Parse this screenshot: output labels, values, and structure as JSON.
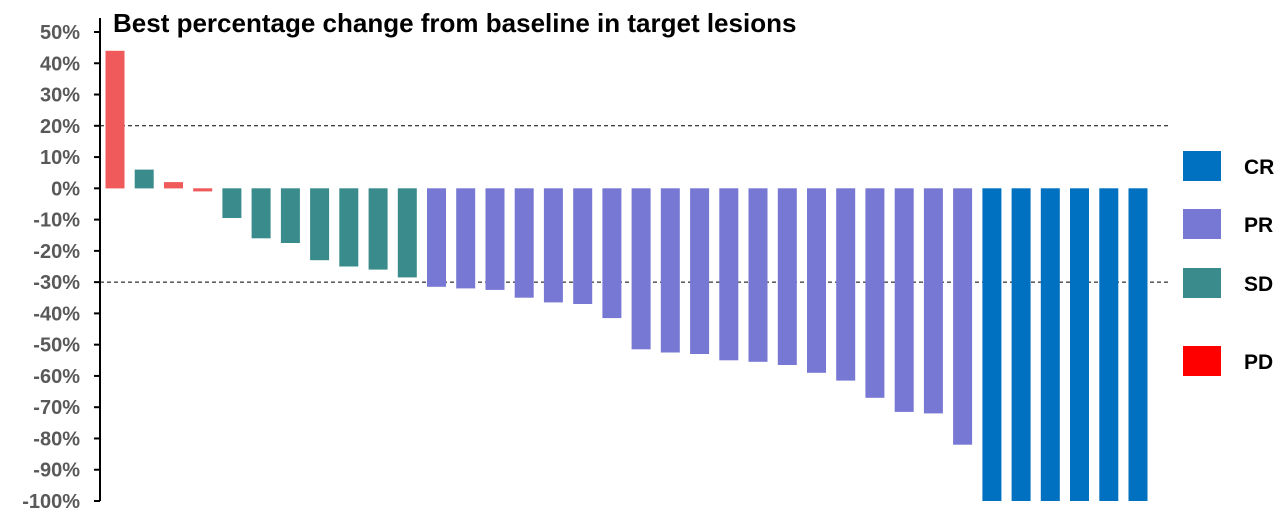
{
  "chart_data": {
    "type": "bar",
    "title": "Best percentage change from baseline in target lesions",
    "xlabel": "",
    "ylabel": "",
    "ylim": [
      -100,
      50
    ],
    "y_ticks": [
      50,
      40,
      30,
      20,
      10,
      0,
      -10,
      -20,
      -30,
      -40,
      -50,
      -60,
      -70,
      -80,
      -90,
      -100
    ],
    "y_tick_labels": [
      "50%",
      "40%",
      "30%",
      "20%",
      "10%",
      "0%",
      "-10%",
      "-20%",
      "-30%",
      "-40%",
      "-50%",
      "-60%",
      "-70%",
      "-80%",
      "-90%",
      "-100%"
    ],
    "reference_lines": [
      20,
      -30
    ],
    "grid": false,
    "legend_position": "right",
    "legend": [
      {
        "label": "CR",
        "color": "#0070C0"
      },
      {
        "label": "PR",
        "color": "#7777D4"
      },
      {
        "label": "SD",
        "color": "#3A8C8C"
      },
      {
        "label": "PD",
        "color": "#FF0000"
      }
    ],
    "colors": {
      "PD": "#F05A5A",
      "SD": "#3A8C8C",
      "PR": "#7777D4",
      "CR": "#0070C0"
    },
    "values": [
      44,
      6,
      2,
      -1,
      -9.5,
      -16,
      -17.5,
      -23,
      -25,
      -26,
      -28.5,
      -31.5,
      -32,
      -32.5,
      -35,
      -36.5,
      -37,
      -41.5,
      -51.5,
      -52.5,
      -53,
      -55,
      -55.5,
      -56.5,
      -59,
      -61.5,
      -67,
      -71.5,
      -72,
      -82,
      -100,
      -100,
      -100,
      -100,
      -100,
      -100
    ],
    "categories": [
      "PD",
      "SD",
      "PD",
      "PD",
      "SD",
      "SD",
      "SD",
      "SD",
      "SD",
      "SD",
      "SD",
      "PR",
      "PR",
      "PR",
      "PR",
      "PR",
      "PR",
      "PR",
      "PR",
      "PR",
      "PR",
      "PR",
      "PR",
      "PR",
      "PR",
      "PR",
      "PR",
      "PR",
      "PR",
      "PR",
      "CR",
      "CR",
      "CR",
      "CR",
      "CR",
      "CR"
    ]
  }
}
